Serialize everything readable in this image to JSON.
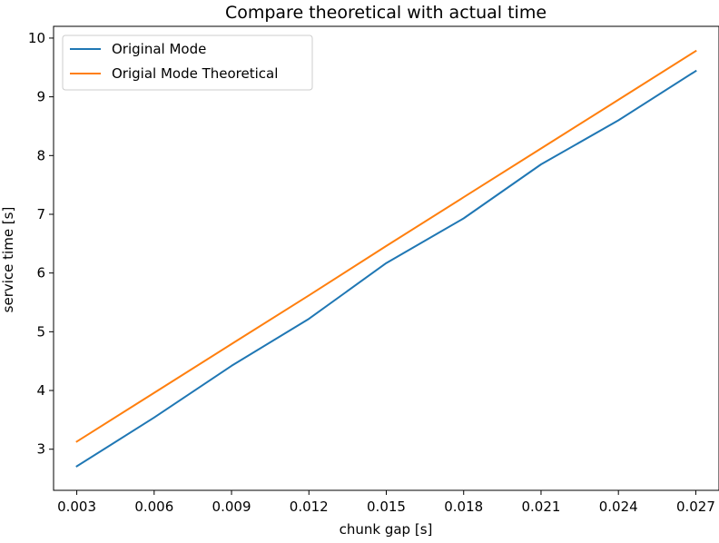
{
  "chart_data": {
    "type": "line",
    "title": "Compare theoretical with actual time",
    "xlabel": "chunk gap [s]",
    "ylabel": "service time [s]",
    "x": [
      0.003,
      0.006,
      0.009,
      0.012,
      0.015,
      0.018,
      0.021,
      0.024,
      0.027
    ],
    "x_tick_labels": [
      "0.003",
      "0.006",
      "0.009",
      "0.012",
      "0.015",
      "0.018",
      "0.021",
      "0.024",
      "0.027"
    ],
    "y_ticks": [
      3,
      4,
      5,
      6,
      7,
      8,
      9,
      10
    ],
    "xlim": [
      0.0021,
      0.0279
    ],
    "ylim": [
      2.3,
      10.2
    ],
    "grid": false,
    "legend_position": "upper left",
    "series": [
      {
        "name": "Original Mode",
        "color": "#1f77b4",
        "values": [
          2.71,
          3.54,
          4.42,
          5.22,
          6.17,
          6.93,
          7.85,
          8.6,
          9.44
        ]
      },
      {
        "name": "Origial Mode Theoretical",
        "color": "#ff7f0e",
        "values": [
          3.13,
          3.96,
          4.79,
          5.62,
          6.46,
          7.29,
          8.12,
          8.95,
          9.78
        ]
      }
    ]
  }
}
